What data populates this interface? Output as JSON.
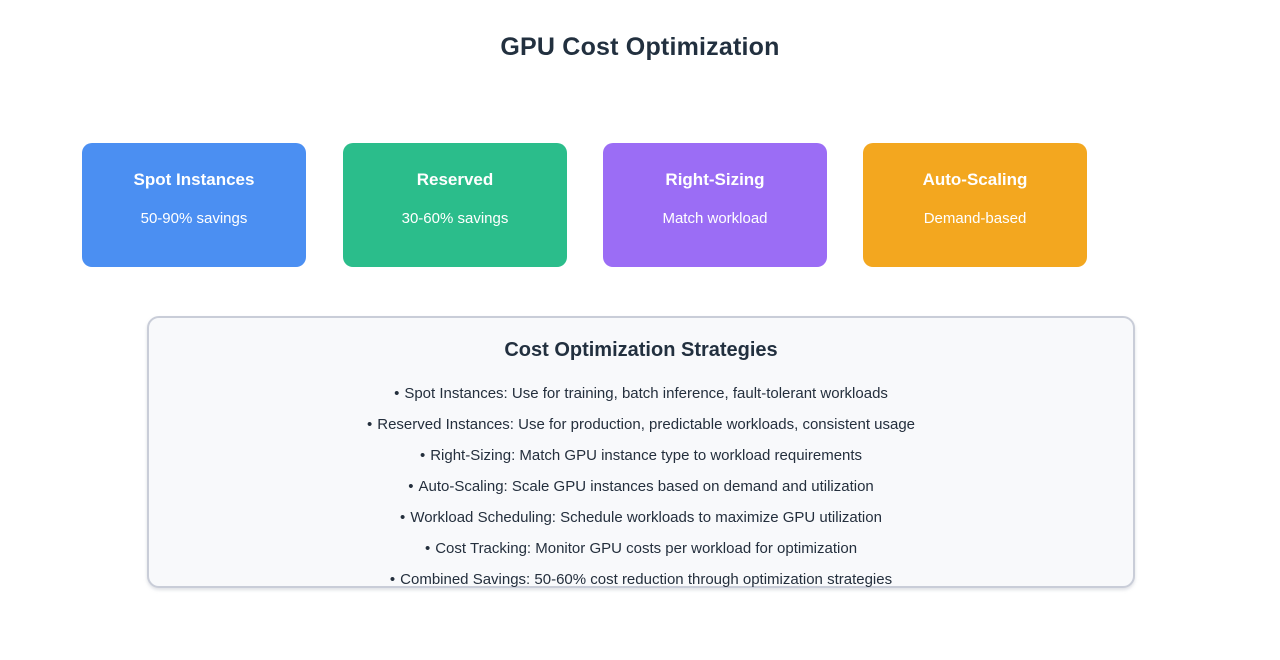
{
  "page": {
    "title": "GPU Cost Optimization"
  },
  "cards": [
    {
      "title": "Spot Instances",
      "subtitle": "50-90% savings",
      "color": "#4b8ff2"
    },
    {
      "title": "Reserved",
      "subtitle": "30-60% savings",
      "color": "#2bbd8b"
    },
    {
      "title": "Right-Sizing",
      "subtitle": "Match workload",
      "color": "#9b6df5"
    },
    {
      "title": "Auto-Scaling",
      "subtitle": "Demand-based",
      "color": "#f3a71f"
    }
  ],
  "strategies": {
    "title": "Cost Optimization Strategies",
    "bullet": "•",
    "items": [
      "Spot Instances: Use for training, batch inference, fault-tolerant workloads",
      "Reserved Instances: Use for production, predictable workloads, consistent usage",
      "Right-Sizing: Match GPU instance type to workload requirements",
      "Auto-Scaling: Scale GPU instances based on demand and utilization",
      "Workload Scheduling: Schedule workloads to maximize GPU utilization",
      "Cost Tracking: Monitor GPU costs per workload for optimization",
      "Combined Savings: 50-60% cost reduction through optimization strategies"
    ]
  },
  "colors": {
    "heading_text": "#22303f",
    "body_text": "#242f3d",
    "box_background": "#f8f9fb",
    "box_border": "#c9cdd8",
    "page_background": "#ffffff"
  }
}
